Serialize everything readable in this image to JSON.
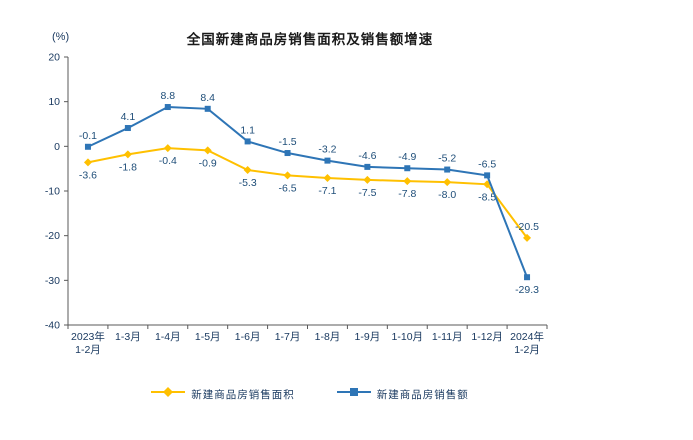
{
  "chart": {
    "y_unit_label": "(%)"
  },
  "chart_data": {
    "type": "line",
    "title": "全国新建商品房销售面积及销售额增速",
    "xlabel": "",
    "ylabel": "(%)",
    "ylim": [
      -40,
      20
    ],
    "yticks": [
      20,
      10,
      0,
      -10,
      -20,
      -30,
      -40
    ],
    "grid": false,
    "legend_position": "bottom",
    "categories": [
      "2023年\n1-2月",
      "1-3月",
      "1-4月",
      "1-5月",
      "1-6月",
      "1-7月",
      "1-8月",
      "1-9月",
      "1-10月",
      "1-11月",
      "1-12月",
      "2024年\n1-2月"
    ],
    "series": [
      {
        "name": "新建商品房销售面积",
        "color": "#FFC000",
        "marker": "diamond",
        "values": [
          -3.6,
          -1.8,
          -0.4,
          -0.9,
          -5.3,
          -6.5,
          -7.1,
          -7.5,
          -7.8,
          -8.0,
          -8.5,
          -20.5
        ],
        "label_side": [
          "below",
          "below",
          "below",
          "below",
          "below",
          "below",
          "below",
          "below",
          "below",
          "below",
          "below",
          "above"
        ]
      },
      {
        "name": "新建商品房销售额",
        "color": "#2E75B6",
        "marker": "square",
        "values": [
          -0.1,
          4.1,
          8.8,
          8.4,
          1.1,
          -1.5,
          -3.2,
          -4.6,
          -4.9,
          -5.2,
          -6.5,
          -29.3
        ],
        "label_side": [
          "above",
          "above",
          "above",
          "above",
          "above",
          "above",
          "above",
          "above",
          "above",
          "above",
          "above",
          "below"
        ]
      }
    ],
    "axis_color": "#595959",
    "label_color": "#1F4E79"
  }
}
